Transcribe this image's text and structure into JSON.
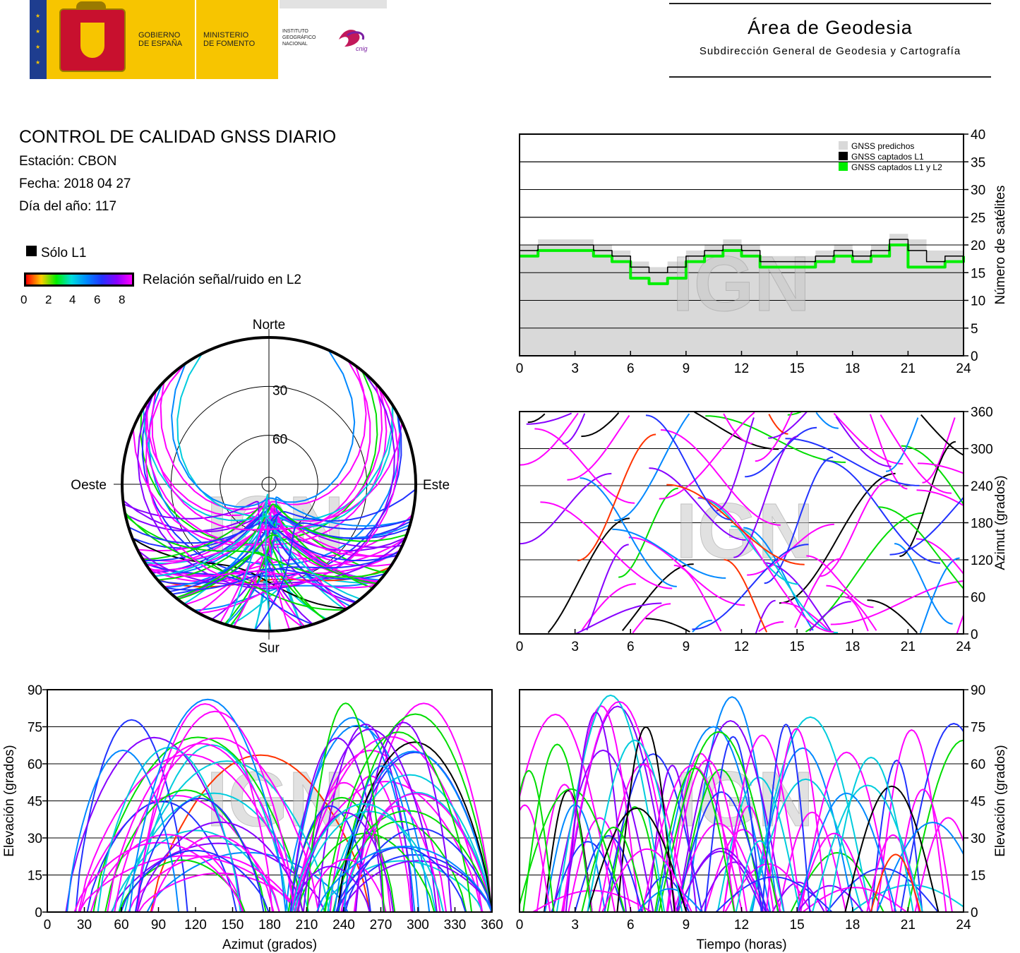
{
  "header": {
    "gobierno": [
      "GOBIERNO",
      "DE ESPAÑA"
    ],
    "ministerio": [
      "MINISTERIO",
      "DE FOMENTO"
    ],
    "instituto": [
      "INSTITUTO",
      "GEOGRÁFICO",
      "NACIONAL"
    ],
    "cnig": "cnig",
    "area_title": "Área de Geodesia",
    "area_subtitle": "Subdirección General de Geodesia y Cartografía"
  },
  "info": {
    "title": "CONTROL DE CALIDAD GNSS DIARIO",
    "station": "Estación: CBON",
    "date": "Fecha: 2018 04 27",
    "doy": "Día del año: 117"
  },
  "legend": {
    "solo_l1": "Sólo L1",
    "snr_label": "Relación señal/ruido en L2",
    "snr_ticks": [
      "0",
      "2",
      "4",
      "6",
      "8"
    ]
  },
  "watermark": "IGN",
  "colors": {
    "predicted": "#d9d9d9",
    "l1": "#000000",
    "l1l2": "#00ee00",
    "snr_scale": [
      "#ff0000",
      "#ffcc00",
      "#00ee00",
      "#00dddd",
      "#0088ff",
      "#2233ff",
      "#8800ff",
      "#ff00ff"
    ]
  },
  "chart_data": [
    {
      "type": "line",
      "name": "satellite_count",
      "xlim": [
        0,
        24
      ],
      "xticks": [
        "0",
        "3",
        "6",
        "9",
        "12",
        "15",
        "18",
        "21",
        "24"
      ],
      "ylim": [
        0,
        40
      ],
      "yticks": [
        "0",
        "5",
        "10",
        "15",
        "20",
        "25",
        "30",
        "35",
        "40"
      ],
      "ylabel": "Número de satélites",
      "grid": true,
      "legend_position": "top-right",
      "series": [
        {
          "name": "GNSS predichos",
          "color": "#d9d9d9",
          "x": [
            0,
            1,
            2,
            3,
            4,
            5,
            6,
            7,
            8,
            9,
            10,
            11,
            12,
            13,
            14,
            15,
            16,
            17,
            18,
            19,
            20,
            21,
            22,
            23,
            24
          ],
          "y": [
            20,
            21,
            21,
            21,
            20,
            19,
            17,
            16,
            17,
            19,
            20,
            21,
            20,
            18,
            18,
            18,
            19,
            20,
            19,
            20,
            22,
            21,
            19,
            19,
            20
          ]
        },
        {
          "name": "GNSS captados L1",
          "color": "#000000",
          "x": [
            0,
            1,
            2,
            3,
            4,
            5,
            6,
            7,
            8,
            9,
            10,
            11,
            12,
            13,
            14,
            15,
            16,
            17,
            18,
            19,
            20,
            21,
            22,
            23,
            24
          ],
          "y": [
            19,
            20,
            20,
            20,
            19,
            18,
            16,
            15,
            16,
            18,
            19,
            20,
            19,
            17,
            17,
            17,
            18,
            19,
            18,
            19,
            21,
            19,
            17,
            18,
            19
          ]
        },
        {
          "name": "GNSS captados L1 y L2",
          "color": "#00ee00",
          "x": [
            0,
            1,
            2,
            3,
            4,
            5,
            6,
            7,
            8,
            9,
            10,
            11,
            12,
            13,
            14,
            15,
            16,
            17,
            18,
            19,
            20,
            21,
            22,
            23,
            24
          ],
          "y": [
            18,
            19,
            19,
            19,
            18,
            17,
            14,
            13,
            14,
            17,
            18,
            19,
            18,
            16,
            16,
            16,
            17,
            18,
            17,
            18,
            20,
            16,
            16,
            17,
            18
          ]
        }
      ]
    },
    {
      "type": "scatter",
      "name": "azimuth_vs_time",
      "xlim": [
        0,
        24
      ],
      "xticks": [
        "0",
        "3",
        "6",
        "9",
        "12",
        "15",
        "18",
        "21",
        "24"
      ],
      "ylim": [
        0,
        360
      ],
      "yticks": [
        "0",
        "60",
        "120",
        "180",
        "240",
        "300",
        "360"
      ],
      "ylabel": "Azimut (grados)",
      "grid": true
    },
    {
      "type": "scatter",
      "name": "skyplot",
      "polar": true,
      "directions": {
        "north": "Norte",
        "south": "Sur",
        "east": "Este",
        "west": "Oeste"
      },
      "ring_labels": [
        "30",
        "60"
      ]
    },
    {
      "type": "scatter",
      "name": "elevation_vs_azimuth",
      "xlim": [
        0,
        360
      ],
      "xticks": [
        "0",
        "30",
        "60",
        "90",
        "120",
        "150",
        "180",
        "210",
        "240",
        "270",
        "300",
        "330",
        "360"
      ],
      "ylim": [
        0,
        90
      ],
      "yticks": [
        "0",
        "15",
        "30",
        "45",
        "60",
        "75",
        "90"
      ],
      "xlabel": "Azimut (grados)",
      "ylabel": "Elevación (grados)",
      "grid": true
    },
    {
      "type": "scatter",
      "name": "elevation_vs_time",
      "xlim": [
        0,
        24
      ],
      "xticks": [
        "0",
        "3",
        "6",
        "9",
        "12",
        "15",
        "18",
        "21",
        "24"
      ],
      "ylim": [
        0,
        90
      ],
      "yticks": [
        "0",
        "15",
        "30",
        "45",
        "60",
        "75",
        "90"
      ],
      "xlabel": "Tiempo (horas)",
      "ylabel": "Elevación (grados)",
      "grid": true
    }
  ]
}
